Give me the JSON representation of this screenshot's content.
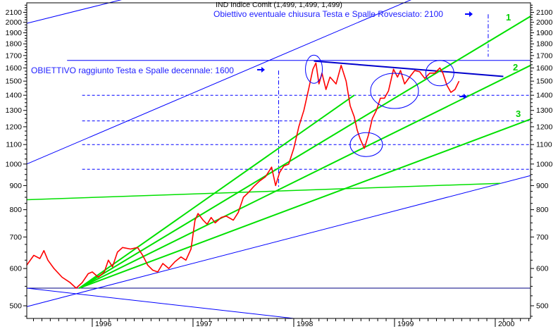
{
  "chart_data": {
    "type": "line",
    "title": "IND Indice Comit (1,499, 1,499, 1,499)",
    "subtitle": "Obiettivo eventuale chiusura Testa e Spalle Rovesciato: 2100",
    "annotation_left": "OBIETTIVO raggiunto Testa e Spalle decennale: 1600",
    "line_labels": [
      "1",
      "2",
      "3"
    ],
    "y_scale": "log",
    "ylim": [
      470,
      2200
    ],
    "xlim": [
      1995.35,
      2000.35
    ],
    "y_ticks": [
      500,
      600,
      700,
      800,
      900,
      1000,
      1100,
      1200,
      1300,
      1400,
      1500,
      1600,
      1700,
      1800,
      1900,
      2000,
      2100
    ],
    "x_ticks": [
      {
        "x": 1996,
        "label": "1996"
      },
      {
        "x": 1997,
        "label": "1997"
      },
      {
        "x": 1998,
        "label": "1998"
      },
      {
        "x": 1999,
        "label": "1999"
      },
      {
        "x": 2000,
        "label": "2000"
      }
    ],
    "grid": false,
    "colors": {
      "price": "#ff0000",
      "trend": "#00e000",
      "channel": "#0000ff",
      "neckline": "#0000cc",
      "reference": "#0000ff",
      "labels": "#00d000"
    },
    "series": [
      {
        "values": [
          {
            "x": 1995.35,
            "y": 610
          },
          {
            "x": 1995.42,
            "y": 640
          },
          {
            "x": 1995.48,
            "y": 630
          },
          {
            "x": 1995.52,
            "y": 655
          },
          {
            "x": 1995.56,
            "y": 625
          },
          {
            "x": 1995.62,
            "y": 600
          },
          {
            "x": 1995.7,
            "y": 575
          },
          {
            "x": 1995.78,
            "y": 560
          },
          {
            "x": 1995.84,
            "y": 545
          },
          {
            "x": 1995.9,
            "y": 560
          },
          {
            "x": 1995.96,
            "y": 585
          },
          {
            "x": 1996.0,
            "y": 590
          },
          {
            "x": 1996.06,
            "y": 575
          },
          {
            "x": 1996.12,
            "y": 590
          },
          {
            "x": 1996.16,
            "y": 625
          },
          {
            "x": 1996.2,
            "y": 605
          },
          {
            "x": 1996.25,
            "y": 650
          },
          {
            "x": 1996.3,
            "y": 665
          },
          {
            "x": 1996.38,
            "y": 660
          },
          {
            "x": 1996.45,
            "y": 665
          },
          {
            "x": 1996.5,
            "y": 640
          },
          {
            "x": 1996.55,
            "y": 610
          },
          {
            "x": 1996.6,
            "y": 595
          },
          {
            "x": 1996.65,
            "y": 590
          },
          {
            "x": 1996.7,
            "y": 615
          },
          {
            "x": 1996.76,
            "y": 600
          },
          {
            "x": 1996.82,
            "y": 620
          },
          {
            "x": 1996.88,
            "y": 635
          },
          {
            "x": 1996.93,
            "y": 625
          },
          {
            "x": 1996.98,
            "y": 660
          },
          {
            "x": 1997.02,
            "y": 760
          },
          {
            "x": 1997.05,
            "y": 785
          },
          {
            "x": 1997.1,
            "y": 760
          },
          {
            "x": 1997.14,
            "y": 745
          },
          {
            "x": 1997.18,
            "y": 770
          },
          {
            "x": 1997.22,
            "y": 750
          },
          {
            "x": 1997.28,
            "y": 770
          },
          {
            "x": 1997.33,
            "y": 775
          },
          {
            "x": 1997.4,
            "y": 760
          },
          {
            "x": 1997.45,
            "y": 790
          },
          {
            "x": 1997.5,
            "y": 850
          },
          {
            "x": 1997.55,
            "y": 870
          },
          {
            "x": 1997.6,
            "y": 895
          },
          {
            "x": 1997.66,
            "y": 920
          },
          {
            "x": 1997.72,
            "y": 940
          },
          {
            "x": 1997.78,
            "y": 985
          },
          {
            "x": 1997.82,
            "y": 900
          },
          {
            "x": 1997.86,
            "y": 960
          },
          {
            "x": 1997.9,
            "y": 990
          },
          {
            "x": 1997.95,
            "y": 1000
          },
          {
            "x": 1998.0,
            "y": 1080
          },
          {
            "x": 1998.05,
            "y": 1200
          },
          {
            "x": 1998.1,
            "y": 1300
          },
          {
            "x": 1998.15,
            "y": 1450
          },
          {
            "x": 1998.19,
            "y": 1590
          },
          {
            "x": 1998.22,
            "y": 1640
          },
          {
            "x": 1998.25,
            "y": 1480
          },
          {
            "x": 1998.28,
            "y": 1560
          },
          {
            "x": 1998.32,
            "y": 1440
          },
          {
            "x": 1998.36,
            "y": 1530
          },
          {
            "x": 1998.42,
            "y": 1480
          },
          {
            "x": 1998.47,
            "y": 1620
          },
          {
            "x": 1998.52,
            "y": 1500
          },
          {
            "x": 1998.56,
            "y": 1330
          },
          {
            "x": 1998.6,
            "y": 1260
          },
          {
            "x": 1998.63,
            "y": 1180
          },
          {
            "x": 1998.66,
            "y": 1130
          },
          {
            "x": 1998.7,
            "y": 1080
          },
          {
            "x": 1998.74,
            "y": 1150
          },
          {
            "x": 1998.78,
            "y": 1250
          },
          {
            "x": 1998.82,
            "y": 1300
          },
          {
            "x": 1998.86,
            "y": 1380
          },
          {
            "x": 1998.9,
            "y": 1380
          },
          {
            "x": 1998.94,
            "y": 1430
          },
          {
            "x": 1998.99,
            "y": 1590
          },
          {
            "x": 1999.03,
            "y": 1530
          },
          {
            "x": 1999.06,
            "y": 1580
          },
          {
            "x": 1999.1,
            "y": 1480
          },
          {
            "x": 1999.15,
            "y": 1530
          },
          {
            "x": 1999.2,
            "y": 1580
          },
          {
            "x": 1999.25,
            "y": 1570
          },
          {
            "x": 1999.3,
            "y": 1520
          },
          {
            "x": 1999.35,
            "y": 1560
          },
          {
            "x": 1999.4,
            "y": 1560
          },
          {
            "x": 1999.45,
            "y": 1600
          },
          {
            "x": 1999.48,
            "y": 1560
          },
          {
            "x": 1999.52,
            "y": 1470
          },
          {
            "x": 1999.56,
            "y": 1420
          },
          {
            "x": 1999.6,
            "y": 1440
          },
          {
            "x": 1999.64,
            "y": 1500
          }
        ]
      }
    ]
  }
}
